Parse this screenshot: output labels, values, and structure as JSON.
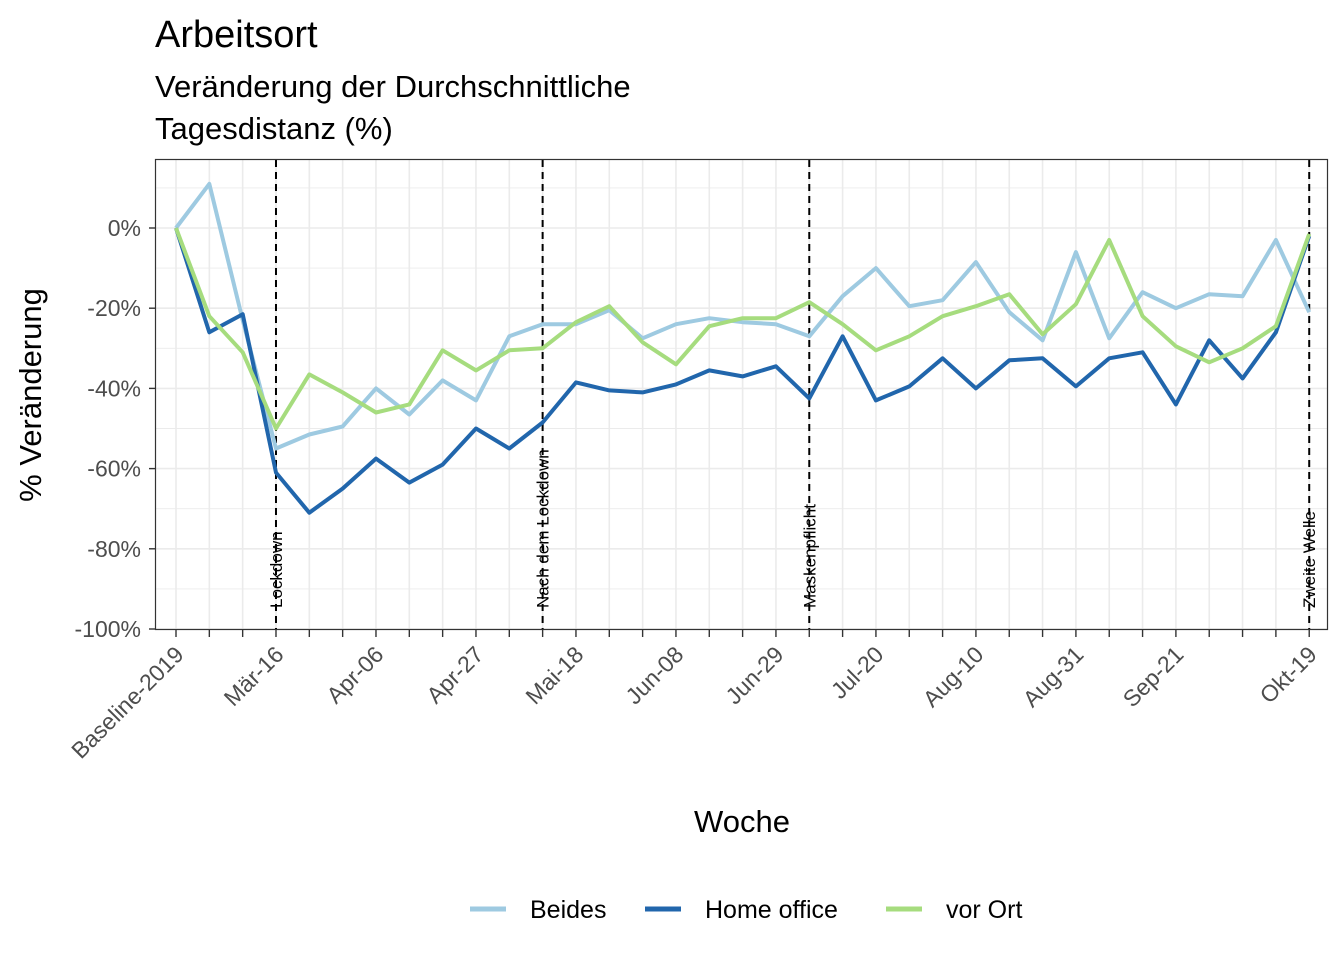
{
  "chart_data": {
    "type": "line",
    "title": "Arbeitsort",
    "subtitle_lines": [
      "Veränderung der Durchschnittliche",
      "Tagesdistanz (%)"
    ],
    "xlabel": "Woche",
    "ylabel": "% Veränderung",
    "ylim": [
      -100,
      16
    ],
    "yticks": [
      0,
      -20,
      -40,
      -60,
      -80,
      -100
    ],
    "ytick_labels": [
      "0%",
      "-20%",
      "-40%",
      "-60%",
      "-80%",
      "-100%"
    ],
    "x_count": 35,
    "xtick_positions": [
      0,
      3,
      6,
      9,
      12,
      15,
      18,
      21,
      24,
      27,
      30,
      34
    ],
    "xtick_labels": [
      "Baseline-2019",
      "Mär-16",
      "Apr-06",
      "Apr-27",
      "Mai-18",
      "Jun-08",
      "Jun-29",
      "Jul-20",
      "Aug-10",
      "Aug-31",
      "Sep-21",
      "Okt-19"
    ],
    "grid": true,
    "legend_position": "bottom",
    "events": [
      {
        "x": 3,
        "label": "Lockdown"
      },
      {
        "x": 11,
        "label": "Nach dem Lockdown"
      },
      {
        "x": 19,
        "label": "Maskenpflicht"
      },
      {
        "x": 34,
        "label": "Zweite Welle"
      }
    ],
    "series": [
      {
        "name": "Beides",
        "color": "#9ecae1",
        "values": [
          0,
          11,
          -23,
          -55,
          -51.5,
          -49.5,
          -40,
          -46.5,
          -38,
          -43,
          -27,
          -24,
          -24,
          -20.5,
          -27.5,
          -24,
          -22.5,
          -23.5,
          -24,
          -27,
          -17,
          -10,
          -19.5,
          -18,
          -8.5,
          -21,
          -28,
          -6,
          -27.5,
          -16,
          -20,
          -16.5,
          -17,
          -3,
          -21
        ]
      },
      {
        "name": "Home office",
        "color": "#2166ac",
        "values": [
          0,
          -26,
          -21.5,
          -61,
          -71,
          -65,
          -57.5,
          -63.5,
          -59,
          -50,
          -55,
          -48.5,
          -38.5,
          -40.5,
          -41,
          -39,
          -35.5,
          -37,
          -34.5,
          -42.5,
          -27,
          -43,
          -39.5,
          -32.5,
          -40,
          -33,
          -32.5,
          -39.5,
          -32.5,
          -31,
          -44,
          -28,
          -37.5,
          -26,
          -2
        ]
      },
      {
        "name": "vor Ort",
        "color": "#a6dc7e",
        "values": [
          0,
          -22,
          -31,
          -50,
          -36.5,
          -41,
          -46,
          -44,
          -30.5,
          -35.5,
          -30.5,
          -30,
          -23.5,
          -19.5,
          -28.5,
          -34,
          -24.5,
          -22.5,
          -22.5,
          -18.5,
          -24,
          -30.5,
          -27,
          -22,
          -19.5,
          -16.5,
          -26.5,
          -19,
          -3,
          -22,
          -29.5,
          -33.5,
          -30,
          -24.5,
          -1.5
        ]
      }
    ]
  }
}
